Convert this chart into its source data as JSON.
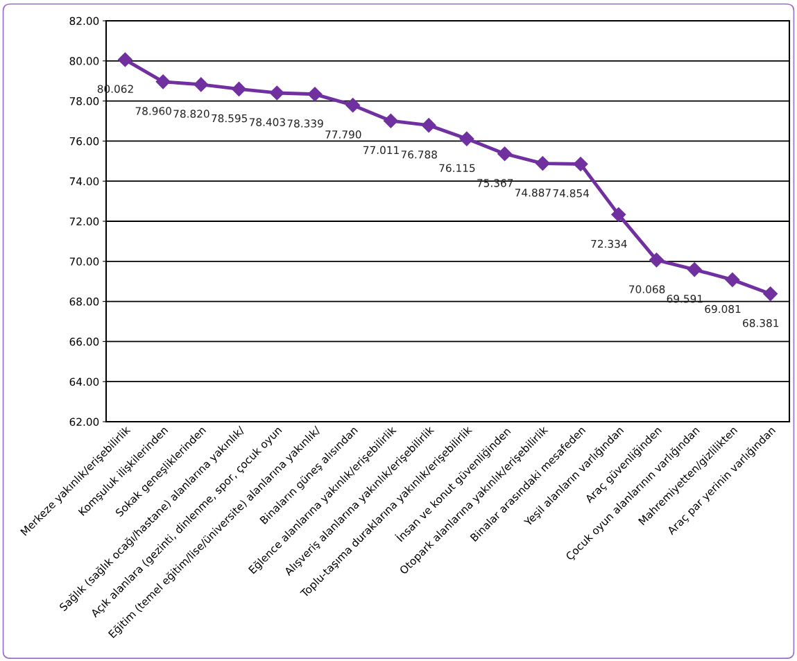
{
  "chart_data": {
    "type": "line",
    "categories": [
      "Merkeze yakınlık/erişebilirlik",
      "Komşuluk ilişkilerinden",
      "Sokak geneşliklerinden",
      "Sağlık (sağlık ocağı/hastane) alanlarına yakınlık/",
      "Açık alanlara (gezinti, dinlenme, spor, çocuk oyun",
      "Eğitim (temel eğitim/lise/üniversite) alanlarına yakınlık/",
      "Binaların güneş alısından",
      "Eğlence alanlarına yakınlık/erişebilirlik",
      "Alışveriş alanlarına yakınlık/erişebilirlik",
      "Toplu-taşıma duraklarına yakınlık/erişebilirlik",
      "İnsan ve konut güvenliğinden",
      "Otopark alanlarına yakınlık/erişebilirlik",
      "Binalar arasındaki mesafeden",
      "Yeşil alanların varlığından",
      "Araç güvenliğinden",
      "Çocuk oyun alanlarının varlığından",
      "Mahremiyetten/gizlilikten",
      "Araç par yerinin varlığından"
    ],
    "series": [
      {
        "color": "#7030a0",
        "values": [
          80.062,
          78.96,
          78.82,
          78.595,
          78.403,
          78.339,
          77.79,
          77.011,
          76.788,
          76.115,
          75.367,
          74.887,
          74.854,
          72.334,
          70.068,
          69.591,
          69.081,
          68.381
        ],
        "value_labels": [
          "80.062",
          "78.960",
          "78.820",
          "78.595",
          "78.403",
          "78.339",
          "77.790",
          "77.011",
          "76.788",
          "76.115",
          "75.367",
          "74.887",
          "74.854",
          "72.334",
          "70.068",
          "69.591",
          "69.081",
          "68.381"
        ]
      }
    ],
    "ylim": [
      62,
      82
    ],
    "yticks": [
      {
        "value": 62,
        "label": "62.00"
      },
      {
        "value": 64,
        "label": "64.00"
      },
      {
        "value": 66,
        "label": "66.00"
      },
      {
        "value": 68,
        "label": "68.00"
      },
      {
        "value": 70,
        "label": "70.00"
      },
      {
        "value": 72,
        "label": "72.00"
      },
      {
        "value": 74,
        "label": "74.00"
      },
      {
        "value": 76,
        "label": "76.00"
      },
      {
        "value": 78,
        "label": "78.00"
      },
      {
        "value": 80,
        "label": "80.00"
      },
      {
        "value": 82,
        "label": "82.00"
      }
    ],
    "grid": "y",
    "marker": "diamond",
    "line_style": "solid",
    "legend": false
  }
}
